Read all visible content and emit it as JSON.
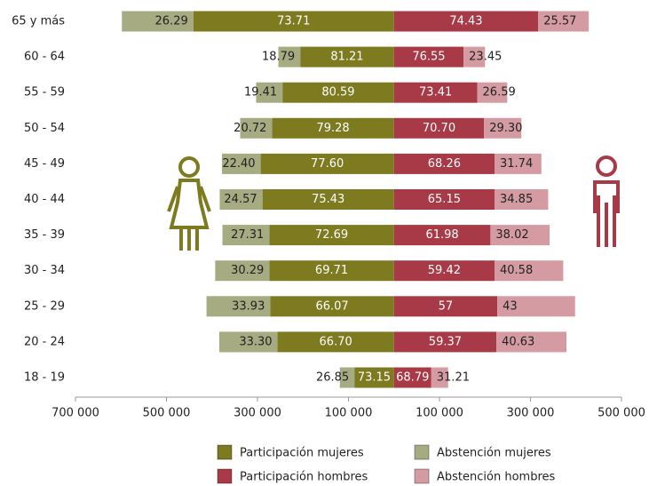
{
  "chart_data": {
    "type": "bar",
    "categories": [
      "65 y más",
      "60 - 64",
      "55 - 59",
      "50 - 54",
      "45 - 49",
      "40 - 44",
      "35 - 39",
      "30 - 34",
      "25 - 29",
      "20 - 24",
      "18 - 19"
    ],
    "series": [
      {
        "name": "Participación mujeres",
        "color": "#7d7a1f",
        "side": "left",
        "values": [
          441000,
          206000,
          245000,
          268000,
          293000,
          289000,
          274000,
          274000,
          272000,
          256000,
          87000
        ],
        "value_labels": [
          "73.71",
          "81.21",
          "80.59",
          "79.28",
          "77.60",
          "75.43",
          "72.69",
          "69.71",
          "66.07",
          "66.70",
          "73.15"
        ]
      },
      {
        "name": "Abstención mujeres",
        "color": "#a6ab82",
        "side": "left",
        "values": [
          157000,
          48000,
          58000,
          70000,
          85000,
          94000,
          103000,
          119000,
          140000,
          128000,
          32000
        ],
        "value_labels": [
          "26.29",
          "18.79",
          "19.41",
          "20.72",
          "22.40",
          "24.57",
          "27.31",
          "30.29",
          "33.93",
          "33.30",
          "26.85"
        ]
      },
      {
        "name": "Participación hombres",
        "color": "#a83a47",
        "side": "right",
        "values": [
          317000,
          153000,
          183000,
          198000,
          221000,
          221000,
          212000,
          221000,
          227000,
          225000,
          82000
        ],
        "value_labels": [
          "74.43",
          "76.55",
          "73.41",
          "70.70",
          "68.26",
          "65.15",
          "61.98",
          "59.42",
          "57",
          "59.37",
          "68.79"
        ]
      },
      {
        "name": "Abstención hombres",
        "color": "#d49ca2",
        "side": "right",
        "values": [
          111000,
          47000,
          66000,
          82000,
          103000,
          118000,
          130000,
          151000,
          171000,
          154000,
          37000
        ],
        "value_labels": [
          "25.57",
          "23.45",
          "26.59",
          "29.30",
          "31.74",
          "34.85",
          "38.02",
          "40.58",
          "43",
          "40.63",
          "31.21"
        ]
      }
    ],
    "xlim": [
      -700000,
      500000
    ],
    "xticks": [
      {
        "value": -700000,
        "label": "700 000"
      },
      {
        "value": -500000,
        "label": "500 000"
      },
      {
        "value": -300000,
        "label": "300 000"
      },
      {
        "value": -100000,
        "label": "100 000"
      },
      {
        "value": 100000,
        "label": "100 000"
      },
      {
        "value": 300000,
        "label": "300 000"
      },
      {
        "value": 500000,
        "label": "500 000"
      }
    ]
  }
}
